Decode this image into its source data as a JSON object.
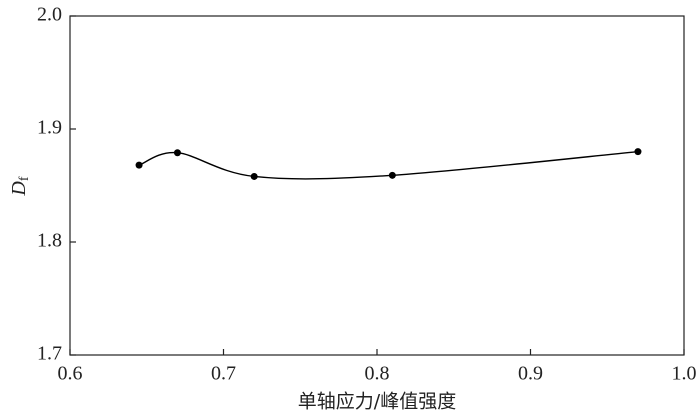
{
  "chart_data": {
    "type": "line",
    "xlabel": "单轴应力/峰值强度",
    "ylabel": {
      "main": "D",
      "sub": "f"
    },
    "x": [
      0.645,
      0.67,
      0.72,
      0.81,
      0.97
    ],
    "series": [
      {
        "color": "#000000",
        "values": [
          1.868,
          1.879,
          1.858,
          1.859,
          1.88
        ]
      }
    ],
    "xlim": [
      0.6,
      1.0
    ],
    "ylim": [
      1.7,
      2.0
    ],
    "xticks": [
      0.6,
      0.7,
      0.8,
      0.9,
      {
        "value": 1,
        "label": "1.0"
      }
    ],
    "yticks": [
      1.7,
      1.8,
      1.9,
      {
        "value": 2,
        "label": "2.0"
      }
    ],
    "smooth": true
  }
}
